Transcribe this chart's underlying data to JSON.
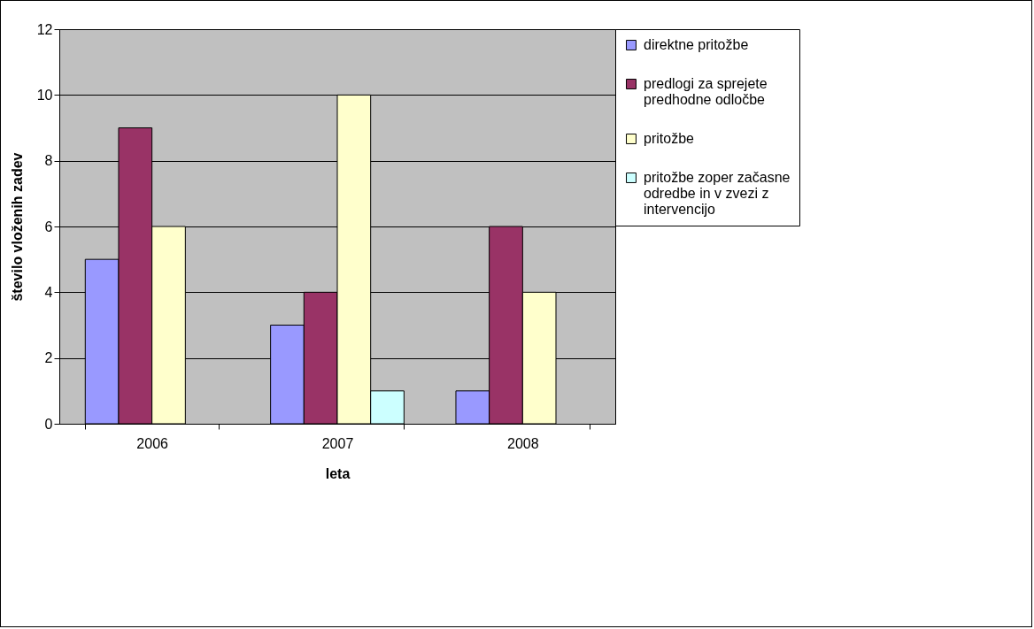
{
  "chart_data": {
    "type": "bar",
    "xlabel": "leta",
    "ylabel": "število vloženih zadev",
    "categories": [
      "2006",
      "2007",
      "2008"
    ],
    "series": [
      {
        "name": "direktne pritožbe",
        "color": "#9999ff",
        "values": [
          5,
          3,
          1
        ]
      },
      {
        "name": "predlogi za sprejete predhodne odločbe",
        "color": "#993366",
        "values": [
          9,
          4,
          6
        ]
      },
      {
        "name": "pritožbe",
        "color": "#ffffcc",
        "values": [
          6,
          10,
          4
        ]
      },
      {
        "name": "pritožbe zoper začasne odredbe in v zvezi z intervencijo",
        "color": "#ccffff",
        "values": [
          null,
          1,
          null
        ]
      }
    ],
    "ylim": [
      0,
      12
    ],
    "yticks": [
      0,
      2,
      4,
      6,
      8,
      10,
      12
    ],
    "grid": "y",
    "legend": "right"
  }
}
